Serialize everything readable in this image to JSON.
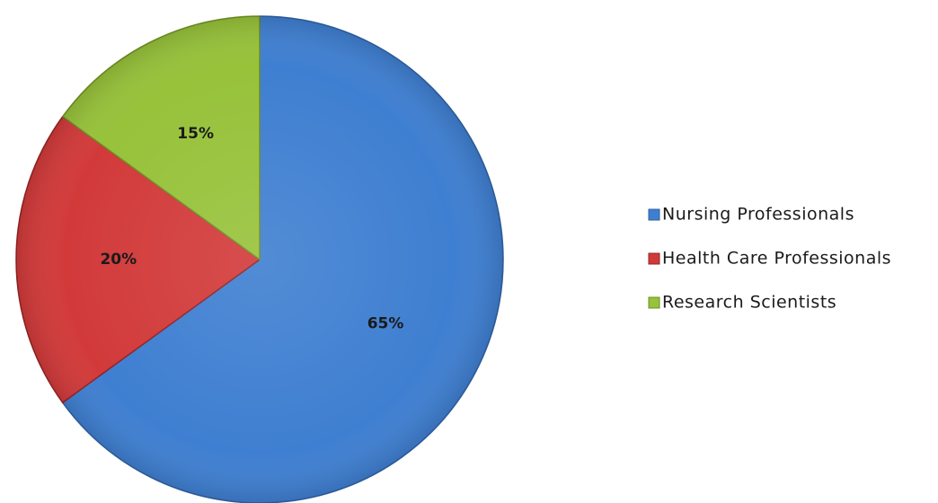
{
  "chart_data": {
    "type": "pie",
    "title": "",
    "start_angle_deg": 0,
    "direction": "clockwise",
    "legend_position": "right",
    "slices": [
      {
        "label": "Nursing Professionals",
        "value": 65,
        "value_label": "65%",
        "color": "#3f7fd1",
        "edge": "#2f5f9e"
      },
      {
        "label": "Health Care Professionals",
        "value": 20,
        "value_label": "20%",
        "color": "#d23a3a",
        "edge": "#8f2424"
      },
      {
        "label": "Research Scientists",
        "value": 15,
        "value_label": "15%",
        "color": "#97c23a",
        "edge": "#6d8d25"
      }
    ]
  }
}
